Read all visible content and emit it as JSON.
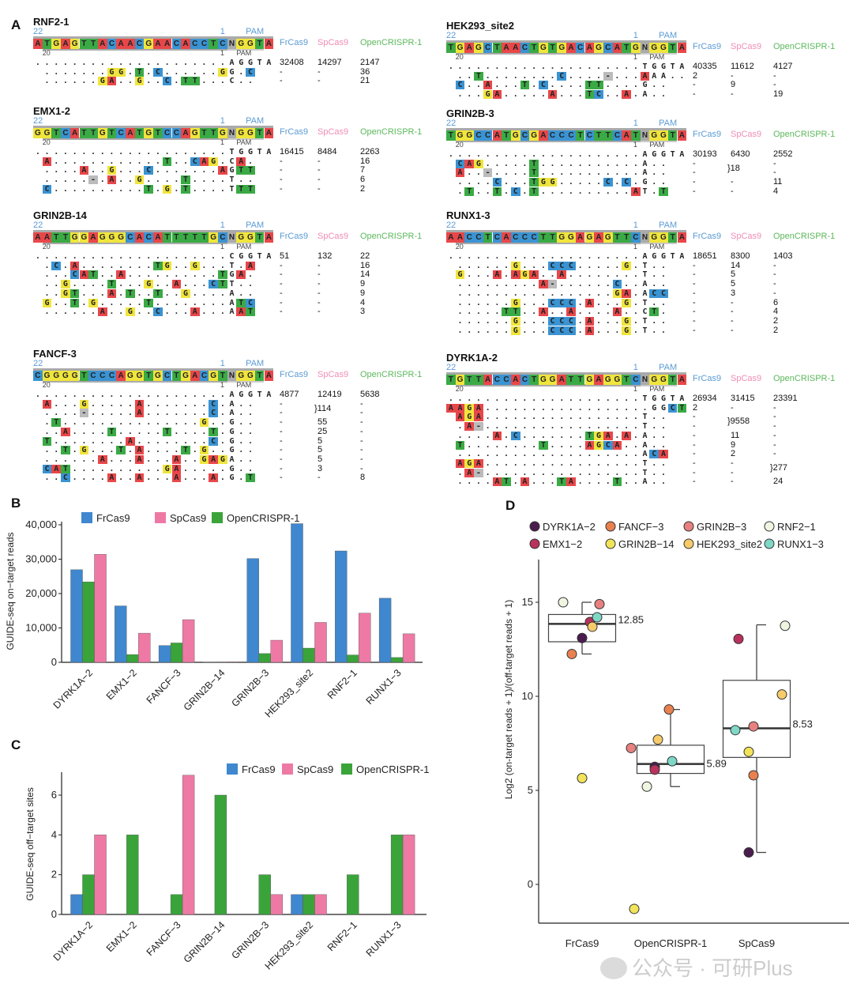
{
  "panel_labels": {
    "a": "A",
    "b": "B",
    "c": "C",
    "d": "D"
  },
  "panel_a": {
    "pos_labels": {
      "start": "22",
      "end": "1",
      "pam": "PAM",
      "sub_start": "20",
      "sub_end": "1",
      "sub_pam": "PAM"
    },
    "enzymes": [
      "FrCas9",
      "SpCas9",
      "OpenCRISPR-1"
    ],
    "enzyme_colors": [
      "#5b9bd5",
      "#f08cb5",
      "#5cb85c"
    ],
    "base_colors": {
      "A": "#e8474a",
      "C": "#3a93d2",
      "G": "#f0e53c",
      "T": "#3aaa45",
      "N": "#aaaaaa",
      "-": "#bbbbbb"
    },
    "sites": [
      {
        "name": "RNF2-1",
        "target": "ATGAGTTACAACGAACACCTCNGGTA",
        "rows": [
          {
            "seq": ".....................aggta",
            "counts": [
              "32408",
              "14297",
              "2147"
            ]
          },
          {
            "seq": " .......GG.T.C......Gg.C  ",
            "counts": [
              "-",
              "-",
              "36"
            ]
          },
          {
            "seq": " ......GA..G..C.TT...c..  ",
            "counts": [
              "-",
              "-",
              "21"
            ]
          }
        ]
      },
      {
        "name": "EMX1-2",
        "target": "GGTCATTGTCATGTCCAGTTGNGGTA",
        "rows": [
          {
            "seq": ".....................tggta",
            "counts": [
              "16415",
              "8484",
              "2263"
            ]
          },
          {
            "seq": " A............T..CAG.cA.  ",
            "counts": [
              "-",
              "-",
              "16"
            ]
          },
          {
            "seq": " ....A..G...C.......AgTT  ",
            "counts": [
              "-",
              "-",
              "7"
            ]
          },
          {
            "seq": " .....-.A..G....T....t..  ",
            "counts": [
              "-",
              "-",
              "6"
            ]
          },
          {
            "seq": " C..........T.G.T....tTT  ",
            "counts": [
              "-",
              "-",
              "2"
            ]
          }
        ]
      },
      {
        "name": "GRIN2B-14",
        "target": "AATTGGAGGGCACATTTTTGCNGGTA",
        "rows": [
          {
            "seq": ".....................cggta",
            "counts": [
              "51",
              "132",
              "22"
            ]
          },
          {
            "seq": " .C.A........TG..G...t.A  ",
            "counts": [
              "-",
              "-",
              "16"
            ]
          },
          {
            "seq": " ...CAT..A..........TgA.  ",
            "counts": [
              "-",
              "-",
              "14"
            ]
          },
          {
            "seq": " ..G....T...G..A...CTt..  ",
            "counts": [
              "-",
              "-",
              "9"
            ]
          },
          {
            "seq": " ..GT...A.T..T..G....a..  ",
            "counts": [
              "-",
              "-",
              "9"
            ]
          },
          {
            "seq": " G..T.G.....T........aTC  ",
            "counts": [
              "-",
              "-",
              "4"
            ]
          },
          {
            "seq": " ......A..G..C...A...aAT  ",
            "counts": [
              "-",
              "-",
              "3"
            ]
          }
        ]
      },
      {
        "name": "FANCF-3",
        "target": "CGGGGTCCCAGGTGCTGACGTNGGTA",
        "rows": [
          {
            "seq": ".....................aggta",
            "counts": [
              "4877",
              "12419",
              "5638"
            ]
          },
          {
            "seq": " A...G.....A.......C.a..  ",
            "counts": [
              "-",
              "}114",
              "-"
            ]
          },
          {
            "seq": " ....-.....A.......C.a..  ",
            "counts": [
              "-",
              "",
              "-"
            ]
          },
          {
            "seq": " .T...............G..g..  ",
            "counts": [
              "-",
              "55",
              "-"
            ]
          },
          {
            "seq": " ..A....T.....T....T.g..  ",
            "counts": [
              "-",
              "25",
              "-"
            ]
          },
          {
            "seq": " T........A........C.g..  ",
            "counts": [
              "-",
              "5",
              "-"
            ]
          },
          {
            "seq": " ..T.G...T.A....T.G..g..  ",
            "counts": [
              "-",
              "5",
              "-"
            ]
          },
          {
            "seq": " ......A...A...A..GAGa..  ",
            "counts": [
              "-",
              "5",
              "-"
            ]
          },
          {
            "seq": " CAT..........GA.....g..  ",
            "counts": [
              "-",
              "3",
              "-"
            ]
          },
          {
            "seq": " ..C....A..A...A...A.g.T  ",
            "counts": [
              "-",
              "-",
              "8"
            ]
          }
        ]
      },
      {
        "name": "HEK293_site2",
        "target": "TGAGCTAACTGTGACAGCATGNGGTA",
        "rows": [
          {
            "seq": ".....................tggta",
            "counts": [
              "40335",
              "11612",
              "4127"
            ]
          },
          {
            "seq": " ..T........C....-...Aaa..",
            "counts": [
              "2",
              "-",
              "-"
            ]
          },
          {
            "seq": " C..A...T.C....TT....g..  ",
            "counts": [
              "-",
              "9",
              "-"
            ]
          },
          {
            "seq": " ...GA.....A...TC..A.a..  ",
            "counts": [
              "-",
              "-",
              "19"
            ]
          }
        ]
      },
      {
        "name": "GRIN2B-3",
        "target": "TGGCCATGCGACCCTCTTCATNGGTA",
        "rows": [
          {
            "seq": ".....................aggta",
            "counts": [
              "30193",
              "6430",
              "2552"
            ]
          },
          {
            "seq": " CAG.....T...........a..  ",
            "counts": [
              "-",
              "}18",
              "-"
            ]
          },
          {
            "seq": " A..-....T...........a..  ",
            "counts": [
              "-",
              "",
              "-"
            ]
          },
          {
            "seq": " ....C...TGG.....C.C.g..  ",
            "counts": [
              "-",
              "-",
              "11"
            ]
          },
          {
            "seq": " .T..T.C.T..........At.T  ",
            "counts": [
              "-",
              "-",
              "4"
            ]
          }
        ]
      },
      {
        "name": "RUNX1-3",
        "target": "AACCTCACCCTTGGAGAGTTCNGGTA",
        "rows": [
          {
            "seq": ".....................aggta",
            "counts": [
              "18651",
              "8300",
              "1403"
            ]
          },
          {
            "seq": " ......G...CCC.....G.t..  ",
            "counts": [
              "-",
              "14",
              "-"
            ]
          },
          {
            "seq": " G...A.AGA..A........t..  ",
            "counts": [
              "-",
              "5",
              "-"
            ]
          },
          {
            "seq": " .........A-......C..a..  ",
            "counts": [
              "-",
              "5",
              "-"
            ]
          },
          {
            "seq": " .................GA.aCC  ",
            "counts": [
              "-",
              "3",
              "-"
            ]
          },
          {
            "seq": " ......G...CCC.A...G.t..  ",
            "counts": [
              "-",
              "-",
              "6"
            ]
          },
          {
            "seq": " .....TT..A..A....A..cT.  ",
            "counts": [
              "-",
              "-",
              "4"
            ]
          },
          {
            "seq": " ......G...CCC.A...G.t..  ",
            "counts": [
              "-",
              "-",
              "2"
            ]
          },
          {
            "seq": " ......G...CCC.A...G.t..  ",
            "counts": [
              "-",
              "-",
              "2"
            ]
          }
        ]
      },
      {
        "name": "DYRK1A-2",
        "target": "TGTTACCACTGGATTGAGGTCNGGTA",
        "rows": [
          {
            "seq": ".....................tggta",
            "counts": [
              "26934",
              "31415",
              "23391"
            ]
          },
          {
            "seq": "AAGA..................ggCT",
            "counts": [
              "2",
              "-",
              "-"
            ]
          },
          {
            "seq": " AGA.................t..  ",
            "counts": [
              "-",
              "}9558",
              "-"
            ]
          },
          {
            "seq": " .A-.................t..  ",
            "counts": [
              "-",
              "",
              "-"
            ]
          },
          {
            "seq": " ....A.C.......TGA.A.a..  ",
            "counts": [
              "-",
              "11",
              "-"
            ]
          },
          {
            "seq": " T........T....AGCA..a..  ",
            "counts": [
              "-",
              "9",
              "-"
            ]
          },
          {
            "seq": " ....................aCA  ",
            "counts": [
              "-",
              "2",
              "-"
            ]
          },
          {
            "seq": " AGA.................t..  ",
            "counts": [
              "-",
              "-",
              "}277"
            ]
          },
          {
            "seq": " .A-.................t..  ",
            "counts": [
              "-",
              "-",
              ""
            ]
          },
          {
            "seq": " ....AT.A...TA....T..a..  ",
            "counts": [
              "-",
              "-",
              "24"
            ]
          }
        ]
      }
    ]
  },
  "chart_data": [
    {
      "panel": "B",
      "type": "bar",
      "ylabel": "GUIDE-seq on−target reads",
      "ylim": [
        0,
        40000
      ],
      "yticks": [
        "0",
        "10,000",
        "20,000",
        "30,000",
        "40,000"
      ],
      "ytick_values": [
        0,
        10000,
        20000,
        30000,
        40000
      ],
      "legend_placement": "top-left",
      "categories": [
        "DYRK1A−2",
        "EMX1−2",
        "FANCF−3",
        "GRIN2B−14",
        "GRIN2B−3",
        "HEK293_site2",
        "RNF2−1",
        "RUNX1−3"
      ],
      "series": [
        {
          "name": "FrCas9",
          "color": "#3f87cf",
          "values": [
            26934,
            16415,
            4877,
            51,
            30193,
            40335,
            32408,
            18651
          ]
        },
        {
          "name": "SpCas9",
          "color": "#ee79a5",
          "values": [
            31415,
            8484,
            12419,
            132,
            6430,
            11612,
            14297,
            8300
          ]
        },
        {
          "name": "OpenCRISPR-1",
          "color": "#3aa43a",
          "values": [
            23391,
            2263,
            5638,
            22,
            2552,
            4127,
            2147,
            1403
          ]
        }
      ]
    },
    {
      "panel": "C",
      "type": "bar",
      "ylabel": "GUIDE-seq off−target sites",
      "ylim": [
        0,
        7
      ],
      "yticks": [
        "0",
        "2",
        "4",
        "6"
      ],
      "ytick_values": [
        0,
        2,
        4,
        6
      ],
      "legend_placement": "top-right",
      "categories": [
        "DYRK1A−2",
        "EMX1−2",
        "FANCF−3",
        "GRIN2B−14",
        "GRIN2B−3",
        "HEK293_site2",
        "RNF2−1",
        "RUNX1−3"
      ],
      "series": [
        {
          "name": "FrCas9",
          "color": "#3f87cf",
          "values": [
            1,
            0,
            0,
            0,
            0,
            1,
            0,
            0
          ]
        },
        {
          "name": "SpCas9",
          "color": "#ee79a5",
          "values": [
            4,
            0,
            7,
            0,
            1,
            1,
            0,
            4
          ]
        },
        {
          "name": "OpenCRISPR-1",
          "color": "#3aa43a",
          "values": [
            2,
            4,
            1,
            6,
            2,
            1,
            2,
            4
          ]
        }
      ]
    },
    {
      "panel": "D",
      "type": "box",
      "ylabel": "Log2 (on-target reads + 1)/(off-target reads + 1)",
      "ylim": [
        -2,
        17.3
      ],
      "yticks": [
        "0",
        "5",
        "10",
        "15"
      ],
      "ytick_values": [
        0,
        5,
        10,
        15
      ],
      "legend_placement": "top",
      "legend": [
        {
          "name": "DYRK1A−2",
          "color": "#4b1d4f"
        },
        {
          "name": "FANCF−3",
          "color": "#e8814f"
        },
        {
          "name": "GRIN2B−3",
          "color": "#e88080"
        },
        {
          "name": "RNF2−1",
          "color": "#eef6e2"
        },
        {
          "name": "EMX1−2",
          "color": "#b8325c"
        },
        {
          "name": "GRIN2B−14",
          "color": "#f2e45a"
        },
        {
          "name": "HEK293_site2",
          "color": "#f6cb6a"
        },
        {
          "name": "RUNX1−3",
          "color": "#7fd8c6"
        }
      ],
      "groups": [
        {
          "name": "FrCas9",
          "q1": 12.9,
          "median": 13.85,
          "q3": 14.35,
          "whisker_low": 12.25,
          "whisker_high": 15.0,
          "label": "12.85",
          "points": {
            "DYRK1A−2": 13.1,
            "EMX1−2": 13.95,
            "FANCF−3": 12.25,
            "GRIN2B−14": 5.65,
            "GRIN2B−3": 14.9,
            "HEK293_site2": 13.7,
            "RNF2−1": 15.0,
            "RUNX1−3": 14.2
          }
        },
        {
          "name": "OpenCRISPR-1",
          "q1": 5.9,
          "median": 6.4,
          "q3": 7.4,
          "whisker_low": 5.2,
          "whisker_high": 9.3,
          "label": "5.89",
          "points": {
            "DYRK1A−2": 6.25,
            "EMX1−2": 6.1,
            "FANCF−3": 9.3,
            "GRIN2B−14": -1.3,
            "GRIN2B−3": 7.25,
            "HEK293_site2": 7.7,
            "RNF2−1": 5.2,
            "RUNX1−3": 6.55
          }
        },
        {
          "name": "SpCas9",
          "q1": 6.75,
          "median": 8.3,
          "q3": 10.85,
          "whisker_low": 1.7,
          "whisker_high": 13.8,
          "label": "8.53",
          "points": {
            "DYRK1A−2": 1.7,
            "EMX1−2": 13.05,
            "FANCF−3": 5.8,
            "GRIN2B−14": 7.05,
            "GRIN2B−3": 8.4,
            "HEK293_site2": 10.1,
            "RNF2−1": 13.75,
            "RUNX1−3": 8.2
          }
        }
      ]
    }
  ],
  "watermark": "公众号 · 可研Plus"
}
